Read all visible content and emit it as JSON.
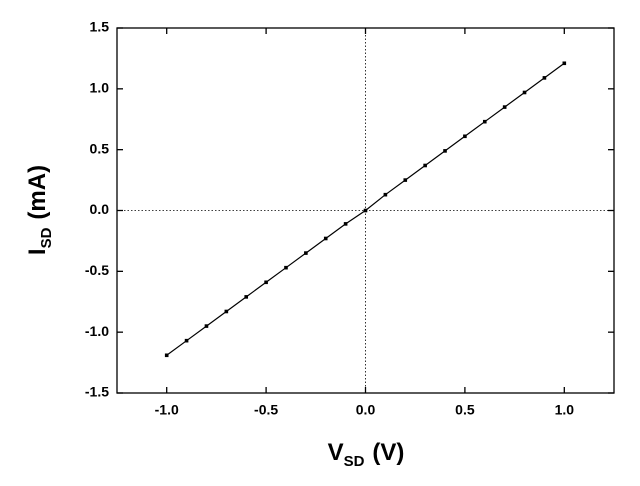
{
  "chart_data": {
    "type": "line",
    "x_label": {
      "main": "V",
      "sub": "SD",
      "unit": "(V)"
    },
    "y_label": {
      "main": "I",
      "sub": "SD",
      "unit": "(mA)"
    },
    "x": [
      -1.0,
      -0.9,
      -0.8,
      -0.7,
      -0.6,
      -0.5,
      -0.4,
      -0.3,
      -0.2,
      -0.1,
      0.0,
      0.1,
      0.2,
      0.3,
      0.4,
      0.5,
      0.6,
      0.7,
      0.8,
      0.9,
      1.0
    ],
    "series": [
      {
        "color": "#000000",
        "values": [
          -1.19,
          -1.07,
          -0.95,
          -0.83,
          -0.71,
          -0.59,
          -0.47,
          -0.35,
          -0.23,
          -0.11,
          0.0,
          0.13,
          0.25,
          0.37,
          0.49,
          0.61,
          0.73,
          0.85,
          0.97,
          1.09,
          1.21
        ]
      }
    ],
    "xlim": [
      -1.25,
      1.25
    ],
    "ylim": [
      -1.5,
      1.5
    ],
    "xticks": [
      {
        "value": -1,
        "label": "-1.0"
      },
      -0.5,
      {
        "value": 0,
        "label": "0.0"
      },
      0.5,
      {
        "value": 1,
        "label": "1.0"
      }
    ],
    "yticks": [
      -1.5,
      {
        "value": -1,
        "label": "-1.0"
      },
      -0.5,
      {
        "value": 0,
        "label": "0.0"
      },
      0.5,
      {
        "value": 1,
        "label": "1.0"
      },
      1.5
    ],
    "zero_lines": true,
    "markers": true
  }
}
